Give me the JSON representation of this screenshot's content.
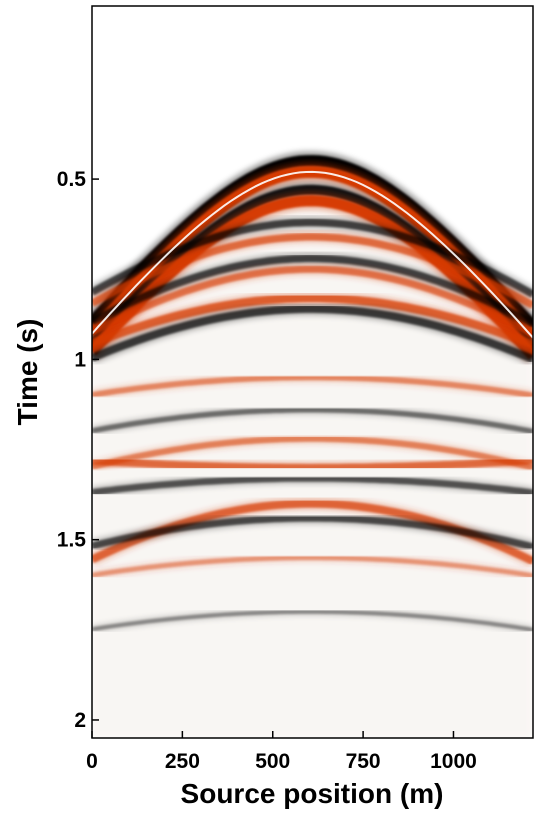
{
  "chart_data": {
    "type": "heatmap",
    "title": "",
    "xlabel": "Source position (m)",
    "ylabel": "Time (s)",
    "xlim": [
      0,
      1220
    ],
    "ylim": [
      2.05,
      0.02
    ],
    "y_inverted": true,
    "x_ticks": [
      0,
      250,
      500,
      750,
      1000
    ],
    "x_tick_labels": [
      "0",
      "250",
      "500",
      "750",
      "1000"
    ],
    "y_ticks": [
      0.5,
      1,
      1.5,
      2
    ],
    "y_tick_labels": [
      "0.5",
      "1",
      "1.5",
      "2"
    ],
    "grid": false,
    "legend": "none",
    "colormap": [
      "#000000",
      "#ffffff",
      "#d63a00"
    ],
    "apex_position": 605,
    "events": [
      {
        "t_apex": 0.45,
        "t_edge": 0.91,
        "polarity": "black",
        "amplitude": 1.0
      },
      {
        "t_apex": 0.48,
        "t_edge": 0.94,
        "polarity": "red",
        "amplitude": 1.0
      },
      {
        "t_apex": 0.53,
        "t_edge": 0.97,
        "polarity": "black",
        "amplitude": 0.8
      },
      {
        "t_apex": 0.56,
        "t_edge": 0.99,
        "polarity": "red",
        "amplitude": 0.9
      },
      {
        "t_apex": 0.62,
        "t_edge": 0.82,
        "polarity": "black",
        "amplitude": 0.5
      },
      {
        "t_apex": 0.66,
        "t_edge": 0.85,
        "polarity": "red",
        "amplitude": 0.5
      },
      {
        "t_apex": 0.72,
        "t_edge": 0.9,
        "polarity": "black",
        "amplitude": 0.5
      },
      {
        "t_apex": 0.75,
        "t_edge": 0.93,
        "polarity": "red",
        "amplitude": 0.45
      },
      {
        "t_apex": 0.83,
        "t_edge": 0.96,
        "polarity": "red",
        "amplitude": 0.6
      },
      {
        "t_apex": 0.86,
        "t_edge": 1.0,
        "polarity": "black",
        "amplitude": 0.55
      },
      {
        "t_apex": 1.05,
        "t_edge": 1.1,
        "polarity": "red",
        "amplitude": 0.3
      },
      {
        "t_apex": 1.14,
        "t_edge": 1.2,
        "polarity": "black",
        "amplitude": 0.25
      },
      {
        "t_apex": 1.22,
        "t_edge": 1.3,
        "polarity": "red",
        "amplitude": 0.35
      },
      {
        "t_apex": 1.3,
        "t_edge": 1.28,
        "polarity": "red",
        "amplitude": 0.5
      },
      {
        "t_apex": 1.33,
        "t_edge": 1.37,
        "polarity": "black",
        "amplitude": 0.4
      },
      {
        "t_apex": 1.4,
        "t_edge": 1.56,
        "polarity": "red",
        "amplitude": 0.55
      },
      {
        "t_apex": 1.44,
        "t_edge": 1.52,
        "polarity": "black",
        "amplitude": 0.45
      },
      {
        "t_apex": 1.55,
        "t_edge": 1.6,
        "polarity": "red",
        "amplitude": 0.2
      },
      {
        "t_apex": 1.7,
        "t_edge": 1.75,
        "polarity": "black",
        "amplitude": 0.12
      }
    ]
  }
}
